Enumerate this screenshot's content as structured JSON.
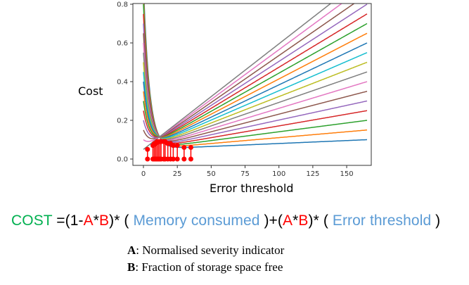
{
  "chart_data": {
    "type": "line",
    "xlabel": "Error threshold",
    "ylabel": "Cost",
    "xlim": [
      -8,
      168
    ],
    "ylim": [
      -0.04,
      1.0
    ],
    "xticks": [
      0,
      25,
      50,
      75,
      100,
      125,
      150
    ],
    "yticks": [
      0.0,
      0.2,
      0.4,
      0.6,
      0.8
    ],
    "ytick_labels": [
      "0.0",
      "0.2",
      "0.4",
      "0.6",
      "0.8"
    ],
    "x_max": 165,
    "series": [
      {
        "color": "#1f77b4",
        "start": 0.9,
        "end": 0.1
      },
      {
        "color": "#ff7f0e",
        "start": 0.85,
        "end": 0.15
      },
      {
        "color": "#2ca02c",
        "start": 0.8,
        "end": 0.2
      },
      {
        "color": "#d62728",
        "start": 0.75,
        "end": 0.25
      },
      {
        "color": "#9467bd",
        "start": 0.7,
        "end": 0.3
      },
      {
        "color": "#8c564b",
        "start": 0.65,
        "end": 0.35
      },
      {
        "color": "#e377c2",
        "start": 0.6,
        "end": 0.4
      },
      {
        "color": "#7f7f7f",
        "start": 0.55,
        "end": 0.45
      },
      {
        "color": "#bcbd22",
        "start": 0.5,
        "end": 0.5
      },
      {
        "color": "#17becf",
        "start": 0.45,
        "end": 0.55
      },
      {
        "color": "#1f77b4",
        "start": 0.4,
        "end": 0.6
      },
      {
        "color": "#ff7f0e",
        "start": 0.35,
        "end": 0.65
      },
      {
        "color": "#2ca02c",
        "start": 0.3,
        "end": 0.7
      },
      {
        "color": "#d62728",
        "start": 0.25,
        "end": 0.75
      },
      {
        "color": "#9467bd",
        "start": 0.2,
        "end": 0.8
      },
      {
        "color": "#8c564b",
        "start": 0.15,
        "end": 0.85
      },
      {
        "color": "#e377c2",
        "start": 0.1,
        "end": 0.9
      },
      {
        "color": "#7f7f7f",
        "start": 0.05,
        "end": 0.95
      }
    ],
    "minima_stems": {
      "color": "#ff0000",
      "points": [
        [
          3,
          0.05
        ],
        [
          7,
          0.07
        ],
        [
          8,
          0.08
        ],
        [
          9,
          0.08
        ],
        [
          10,
          0.09
        ],
        [
          11,
          0.09
        ],
        [
          12,
          0.09
        ],
        [
          13,
          0.09
        ],
        [
          15,
          0.09
        ],
        [
          16,
          0.09
        ],
        [
          18,
          0.08
        ],
        [
          20,
          0.08
        ],
        [
          22,
          0.07
        ],
        [
          25,
          0.07
        ],
        [
          30,
          0.06
        ],
        [
          35,
          0.06
        ]
      ]
    }
  },
  "formula": {
    "cost": "COST",
    "p1": " =(1-",
    "a1": "A",
    "star1": "*",
    "b1": "B",
    "p2": ")* ( ",
    "memory": "Memory consumed",
    "p3": " )+(",
    "a2": "A",
    "star2": "*",
    "b2": "B",
    "p4": ")* ( ",
    "error": "Error threshold",
    "p5": " )"
  },
  "definitions": [
    {
      "key": "A",
      "text": ": Normalised  severity indicator"
    },
    {
      "key": "B",
      "text": ": Fraction of storage space free"
    }
  ]
}
